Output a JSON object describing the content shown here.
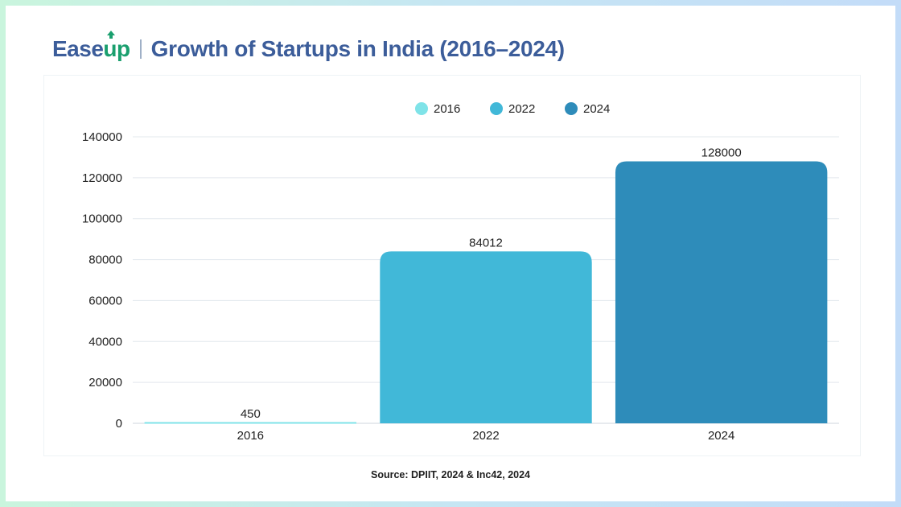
{
  "header": {
    "logo": "EaseUp",
    "title": "Growth of Startups in India (2016–2024)"
  },
  "footer": {
    "source": "Source: DPIIT, 2024 & Inc42, 2024"
  },
  "colors": {
    "brand_blue": "#3c5d9a",
    "brand_green": "#1a9f6e"
  },
  "chart_data": {
    "type": "bar",
    "categories": [
      "2016",
      "2022",
      "2024"
    ],
    "values": [
      450,
      84012,
      128000
    ],
    "data_labels": [
      "450",
      "84012",
      "128000"
    ],
    "colors": [
      "#7fe3e8",
      "#41b8d8",
      "#2e8cba"
    ],
    "legend": [
      {
        "name": "2016",
        "color": "#7fe3e8"
      },
      {
        "name": "2022",
        "color": "#41b8d8"
      },
      {
        "name": "2024",
        "color": "#2e8cba"
      }
    ],
    "legend_position": "top-center",
    "yticks": [
      "0",
      "20000",
      "40000",
      "60000",
      "80000",
      "100000",
      "120000",
      "140000"
    ],
    "ylim": [
      0,
      140000
    ],
    "grid": true
  }
}
